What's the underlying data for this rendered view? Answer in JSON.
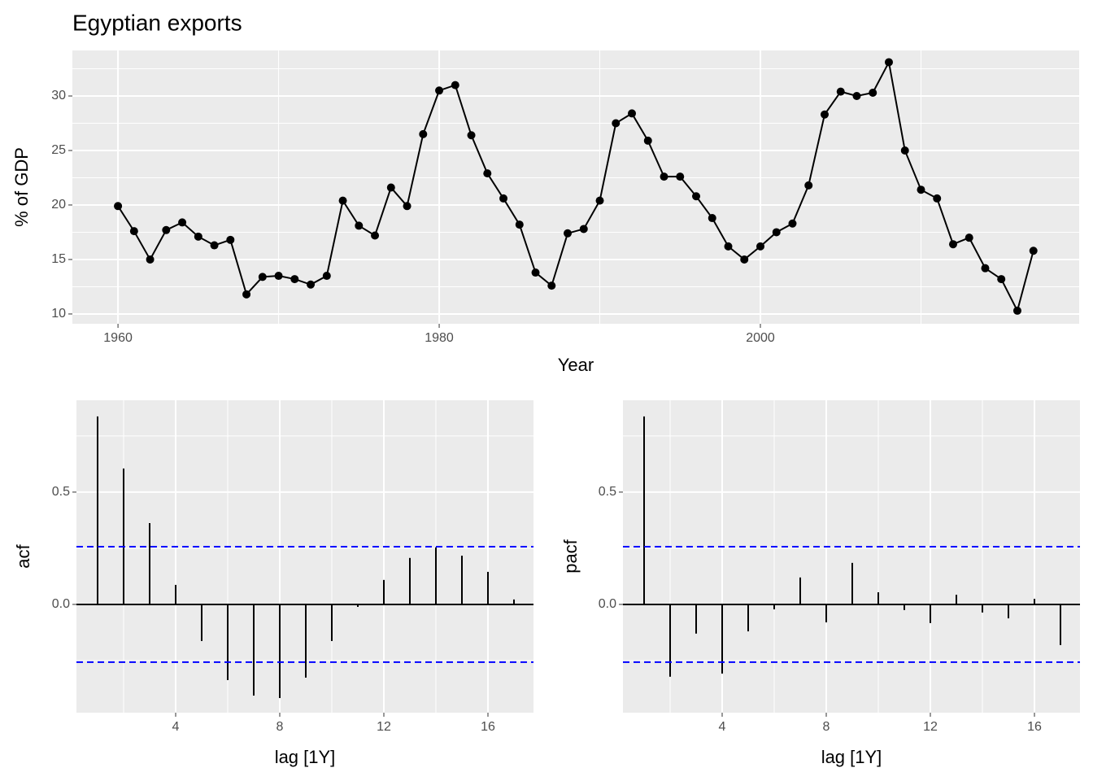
{
  "chart_data": [
    {
      "type": "line",
      "title": "Egyptian exports",
      "xlabel": "Year",
      "ylabel": "% of GDP",
      "color": "#000000",
      "x": [
        1960,
        1961,
        1962,
        1963,
        1964,
        1965,
        1966,
        1967,
        1968,
        1969,
        1970,
        1971,
        1972,
        1973,
        1974,
        1975,
        1976,
        1977,
        1978,
        1979,
        1980,
        1981,
        1982,
        1983,
        1984,
        1985,
        1986,
        1987,
        1988,
        1989,
        1990,
        1991,
        1992,
        1993,
        1994,
        1995,
        1996,
        1997,
        1998,
        1999,
        2000,
        2001,
        2002,
        2003,
        2004,
        2005,
        2006,
        2007,
        2008,
        2009,
        2010,
        2011,
        2012,
        2013,
        2014,
        2015,
        2016,
        2017
      ],
      "values": [
        19.9,
        17.6,
        15.0,
        17.7,
        18.4,
        17.1,
        16.3,
        16.8,
        11.8,
        13.4,
        13.5,
        13.2,
        12.7,
        13.5,
        20.4,
        18.1,
        17.2,
        21.6,
        19.9,
        26.5,
        30.5,
        31.0,
        26.4,
        22.9,
        20.6,
        18.2,
        13.8,
        12.6,
        17.4,
        17.8,
        20.4,
        27.5,
        28.4,
        25.9,
        22.6,
        22.6,
        20.8,
        18.8,
        16.2,
        15.0,
        16.2,
        17.5,
        18.3,
        21.8,
        28.3,
        30.4,
        30.0,
        30.3,
        33.1,
        25.0,
        21.4,
        20.6,
        16.4,
        17.0,
        14.2,
        13.2,
        10.3,
        15.8
      ],
      "xlim": [
        1957.16,
        2019.85
      ],
      "ylim": [
        9.1,
        34.18
      ],
      "xticks": [
        1960,
        1980,
        2000
      ],
      "yticks": [
        10,
        15,
        20,
        25,
        30
      ],
      "grid": true
    },
    {
      "type": "stem",
      "xlabel": "lag [1Y]",
      "ylabel": "acf",
      "color": "#000000",
      "ci": 0.257,
      "ci_color": "#0000ff",
      "x": [
        1,
        2,
        3,
        4,
        5,
        6,
        7,
        8,
        9,
        10,
        11,
        12,
        13,
        14,
        15,
        16,
        17
      ],
      "values": [
        0.837,
        0.605,
        0.362,
        0.087,
        -0.163,
        -0.337,
        -0.406,
        -0.417,
        -0.326,
        -0.163,
        -0.011,
        0.109,
        0.207,
        0.254,
        0.217,
        0.145,
        0.022
      ],
      "xlim": [
        0.1875,
        17.75
      ],
      "ylim": [
        -0.482,
        0.909
      ],
      "xticks": [
        4,
        8,
        12,
        16
      ],
      "yticks": [
        {
          "value": 0,
          "label": "0.0"
        },
        {
          "value": 0.5,
          "label": "0.5"
        }
      ],
      "grid": true
    },
    {
      "type": "stem",
      "xlabel": "lag [1Y]",
      "ylabel": "pacf",
      "color": "#000000",
      "ci": 0.257,
      "ci_color": "#0000ff",
      "x": [
        1,
        2,
        3,
        4,
        5,
        6,
        7,
        8,
        9,
        10,
        11,
        12,
        13,
        14,
        15,
        16,
        17
      ],
      "values": [
        0.837,
        -0.322,
        -0.13,
        -0.308,
        -0.12,
        -0.022,
        0.12,
        -0.08,
        0.185,
        0.054,
        -0.025,
        -0.083,
        0.043,
        -0.036,
        -0.062,
        0.025,
        -0.181
      ],
      "xlim": [
        0.1875,
        17.75
      ],
      "ylim": [
        -0.482,
        0.909
      ],
      "xticks": [
        4,
        8,
        12,
        16
      ],
      "yticks": [
        {
          "value": 0,
          "label": "0.0"
        },
        {
          "value": 0.5,
          "label": "0.5"
        }
      ],
      "grid": true
    }
  ]
}
